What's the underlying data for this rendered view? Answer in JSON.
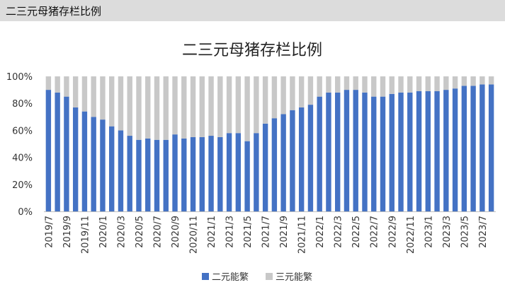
{
  "header": {
    "title": "二三元母猪存栏比例"
  },
  "chart_data": {
    "type": "bar",
    "stacked": true,
    "title": "二三元母猪存栏比例",
    "xlabel": "",
    "ylabel": "",
    "ylim": [
      0,
      100
    ],
    "y_ticks": [
      "0%",
      "20%",
      "40%",
      "60%",
      "80%",
      "100%"
    ],
    "grid": false,
    "legend_position": "bottom",
    "categories": [
      "2019/7",
      "2019/8",
      "2019/9",
      "2019/10",
      "2019/11",
      "2019/12",
      "2020/1",
      "2020/2",
      "2020/3",
      "2020/4",
      "2020/5",
      "2020/6",
      "2020/7",
      "2020/8",
      "2020/9",
      "2020/10",
      "2020/11",
      "2020/12",
      "2021/1",
      "2021/2",
      "2021/3",
      "2021/4",
      "2021/5",
      "2021/6",
      "2021/7",
      "2021/8",
      "2021/9",
      "2021/10",
      "2021/11",
      "2021/12",
      "2022/1",
      "2022/2",
      "2022/3",
      "2022/4",
      "2022/5",
      "2022/6",
      "2022/7",
      "2022/8",
      "2022/9",
      "2022/10",
      "2022/11",
      "2022/12",
      "2023/1",
      "2023/2",
      "2023/3",
      "2023/4",
      "2023/5",
      "2023/6",
      "2023/7",
      "2023/8"
    ],
    "x_tick_labels": [
      "2019/7",
      "2019/9",
      "2019/11",
      "2020/1",
      "2020/3",
      "2020/5",
      "2020/7",
      "2020/9",
      "2020/11",
      "2021/1",
      "2021/3",
      "2021/5",
      "2021/7",
      "2021/9",
      "2021/11",
      "2022/1",
      "2022/3",
      "2022/5",
      "2022/7",
      "2022/9",
      "2022/11",
      "2023/1",
      "2023/3",
      "2023/5",
      "2023/7"
    ],
    "series": [
      {
        "name": "二元能繁",
        "color": "#4472c4",
        "values": [
          90,
          88,
          85,
          77,
          74,
          70,
          68,
          63,
          60,
          56,
          53,
          54,
          53,
          53,
          57,
          54,
          55,
          55,
          56,
          55,
          58,
          58,
          52,
          58,
          65,
          69,
          72,
          75,
          77,
          79,
          85,
          88,
          88,
          90,
          90,
          88,
          85,
          85,
          87,
          88,
          88,
          89,
          89,
          89,
          90,
          91,
          93,
          93,
          94,
          94
        ]
      },
      {
        "name": "三元能繁",
        "color": "#c8c8c8",
        "values": [
          10,
          12,
          15,
          23,
          26,
          30,
          32,
          37,
          40,
          44,
          47,
          46,
          47,
          47,
          43,
          46,
          45,
          45,
          44,
          45,
          42,
          42,
          48,
          42,
          35,
          31,
          28,
          25,
          23,
          21,
          15,
          12,
          12,
          10,
          10,
          12,
          15,
          15,
          13,
          12,
          12,
          11,
          11,
          11,
          10,
          9,
          7,
          7,
          6,
          6
        ]
      }
    ]
  }
}
